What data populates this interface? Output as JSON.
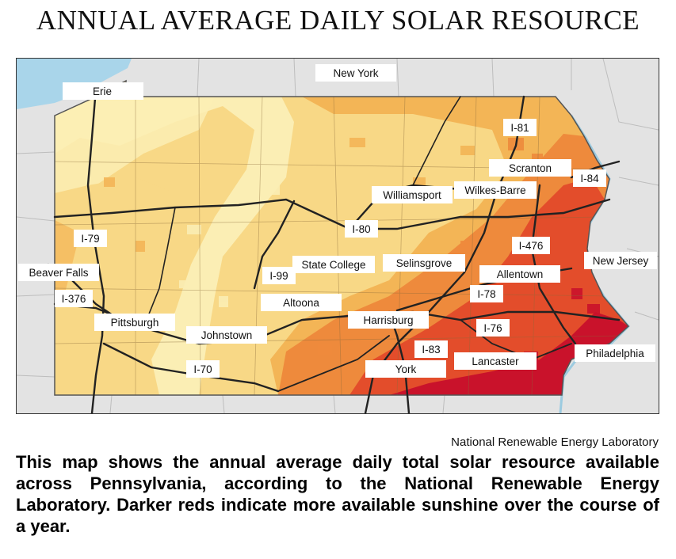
{
  "title": "ANNUAL AVERAGE DAILY SOLAR RESOURCE",
  "credit": "National Renewable Energy Laboratory",
  "caption": "This map shows the annual average daily total solar resource available across Pennsylvania, according to the National Renewable Energy Laboratory. Darker reds indicate more available sunshine over the course of a year.",
  "colors": {
    "water": "#a9d5ea",
    "land_outside": "#e3e3e3",
    "level_1": "#fbeeb4",
    "level_2": "#f8d886",
    "level_3": "#f3b556",
    "level_4": "#ee8a3c",
    "level_5": "#e34d2b",
    "level_6": "#c9122b",
    "roads": "#222222"
  },
  "labels": {
    "erie": "Erie",
    "new_york": "New York",
    "i81": "I-81",
    "scranton": "Scranton",
    "i84": "I-84",
    "williamsport": "Williamsport",
    "wilkes_barre": "Wilkes-Barre",
    "i80": "I-80",
    "i79": "I-79",
    "i476": "I-476",
    "new_jersey": "New Jersey",
    "state_college": "State College",
    "selinsgrove": "Selinsgrove",
    "beaver_falls": "Beaver Falls",
    "i99": "I-99",
    "allentown": "Allentown",
    "i376": "I-376",
    "altoona": "Altoona",
    "i78": "I-78",
    "pittsburgh": "Pittsburgh",
    "harrisburg": "Harrisburg",
    "i76": "I-76",
    "johnstown": "Johnstown",
    "i83": "I-83",
    "philadelphia": "Philadelphia",
    "i70": "I-70",
    "york": "York",
    "lancaster": "Lancaster"
  }
}
